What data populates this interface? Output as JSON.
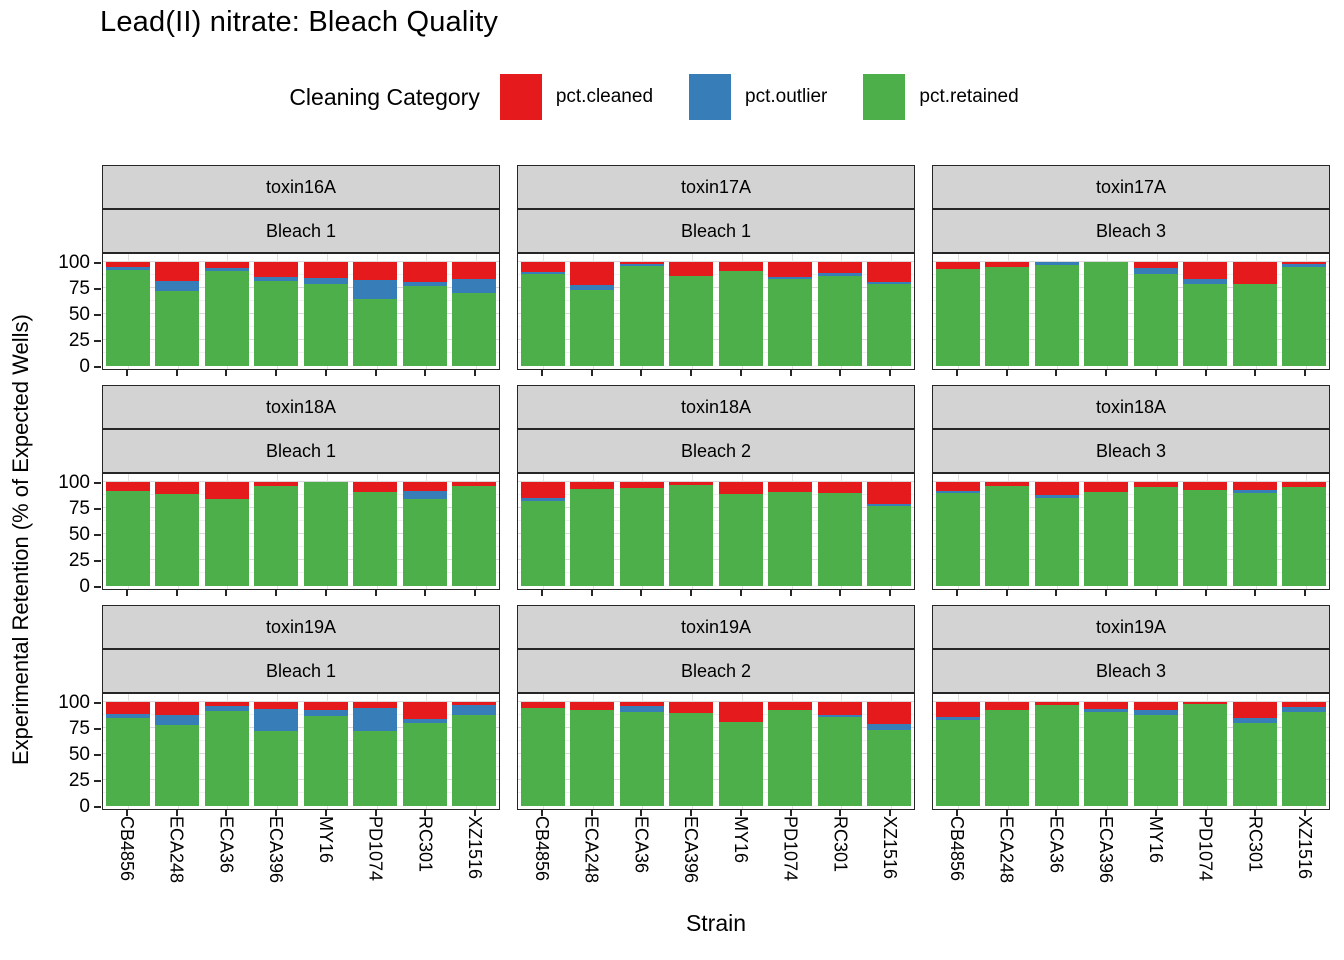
{
  "title": "Lead(II) nitrate: Bleach Quality",
  "legend": {
    "title": "Cleaning Category",
    "items": [
      {
        "label": "pct.cleaned",
        "color": "#E41A1C"
      },
      {
        "label": "pct.outlier",
        "color": "#377EB8"
      },
      {
        "label": "pct.retained",
        "color": "#4DAF4A"
      }
    ]
  },
  "axes": {
    "x_title": "Strain",
    "y_title": "Experimental Retention (% of Expected Wells)",
    "y_ticks": [
      0,
      25,
      50,
      75,
      100
    ]
  },
  "colors": {
    "pct.cleaned": "#E41A1C",
    "pct.outlier": "#377EB8",
    "pct.retained": "#4DAF4A",
    "strip_bg": "#D3D3D3",
    "panel_border": "#262626"
  },
  "chart_data": {
    "type": "bar",
    "stacked": true,
    "units": "percent",
    "ylim": [
      0,
      100
    ],
    "grid": true,
    "legend_position": "top",
    "categories": [
      "CB4856",
      "ECA248",
      "ECA36",
      "ECA396",
      "MY16",
      "PD1074",
      "RC301",
      "XZ1516"
    ],
    "stack_order_top_to_bottom": [
      "pct.cleaned",
      "pct.outlier",
      "pct.retained"
    ],
    "panels": [
      {
        "row": 0,
        "col": 0,
        "toxin": "toxin16A",
        "bleach": "Bleach 1",
        "series": {
          "pct.cleaned": [
            5,
            19,
            6,
            15,
            16,
            18,
            20,
            17
          ],
          "pct.outlier": [
            3,
            9,
            3,
            4,
            6,
            18,
            4,
            13
          ],
          "pct.retained": [
            92,
            72,
            91,
            81,
            78,
            64,
            76,
            70
          ]
        }
      },
      {
        "row": 0,
        "col": 1,
        "toxin": "toxin17A",
        "bleach": "Bleach 1",
        "series": {
          "pct.cleaned": [
            10,
            23,
            2,
            14,
            9,
            15,
            11,
            20
          ],
          "pct.outlier": [
            2,
            4,
            2,
            0,
            0,
            2,
            3,
            2
          ],
          "pct.retained": [
            88,
            73,
            96,
            86,
            91,
            83,
            86,
            78
          ]
        }
      },
      {
        "row": 0,
        "col": 2,
        "toxin": "toxin17A",
        "bleach": "Bleach 3",
        "series": {
          "pct.cleaned": [
            7,
            5,
            0,
            0,
            6,
            17,
            22,
            2
          ],
          "pct.outlier": [
            0,
            0,
            3,
            0,
            6,
            5,
            0,
            3
          ],
          "pct.retained": [
            93,
            95,
            97,
            100,
            88,
            78,
            78,
            95
          ]
        }
      },
      {
        "row": 1,
        "col": 0,
        "toxin": "toxin18A",
        "bleach": "Bleach 1",
        "series": {
          "pct.cleaned": [
            9,
            12,
            17,
            4,
            0,
            10,
            9,
            4
          ],
          "pct.outlier": [
            0,
            0,
            0,
            0,
            0,
            0,
            8,
            0
          ],
          "pct.retained": [
            91,
            88,
            83,
            96,
            100,
            90,
            83,
            96
          ]
        }
      },
      {
        "row": 1,
        "col": 1,
        "toxin": "toxin18A",
        "bleach": "Bleach 2",
        "series": {
          "pct.cleaned": [
            16,
            7,
            6,
            3,
            12,
            10,
            11,
            22
          ],
          "pct.outlier": [
            3,
            0,
            0,
            0,
            0,
            0,
            0,
            2
          ],
          "pct.retained": [
            81,
            93,
            94,
            97,
            88,
            90,
            89,
            76
          ]
        }
      },
      {
        "row": 1,
        "col": 2,
        "toxin": "toxin18A",
        "bleach": "Bleach 3",
        "series": {
          "pct.cleaned": [
            9,
            4,
            13,
            10,
            5,
            8,
            8,
            5
          ],
          "pct.outlier": [
            2,
            0,
            3,
            0,
            0,
            0,
            3,
            0
          ],
          "pct.retained": [
            89,
            96,
            84,
            90,
            95,
            92,
            89,
            95
          ]
        }
      },
      {
        "row": 2,
        "col": 0,
        "toxin": "toxin19A",
        "bleach": "Bleach 1",
        "series": {
          "pct.cleaned": [
            12,
            13,
            4,
            7,
            8,
            6,
            17,
            3
          ],
          "pct.outlier": [
            4,
            10,
            5,
            21,
            6,
            22,
            4,
            10
          ],
          "pct.retained": [
            84,
            77,
            91,
            72,
            86,
            72,
            79,
            87
          ]
        }
      },
      {
        "row": 2,
        "col": 1,
        "toxin": "toxin19A",
        "bleach": "Bleach 2",
        "series": {
          "pct.cleaned": [
            6,
            8,
            4,
            11,
            20,
            8,
            13,
            22
          ],
          "pct.outlier": [
            0,
            0,
            6,
            0,
            0,
            0,
            2,
            5
          ],
          "pct.retained": [
            94,
            92,
            90,
            89,
            80,
            92,
            85,
            73
          ]
        }
      },
      {
        "row": 2,
        "col": 2,
        "toxin": "toxin19A",
        "bleach": "Bleach 3",
        "series": {
          "pct.cleaned": [
            15,
            8,
            3,
            7,
            8,
            2,
            16,
            5
          ],
          "pct.outlier": [
            3,
            0,
            0,
            3,
            5,
            0,
            5,
            5
          ],
          "pct.retained": [
            82,
            92,
            97,
            90,
            87,
            98,
            79,
            90
          ]
        }
      }
    ]
  }
}
